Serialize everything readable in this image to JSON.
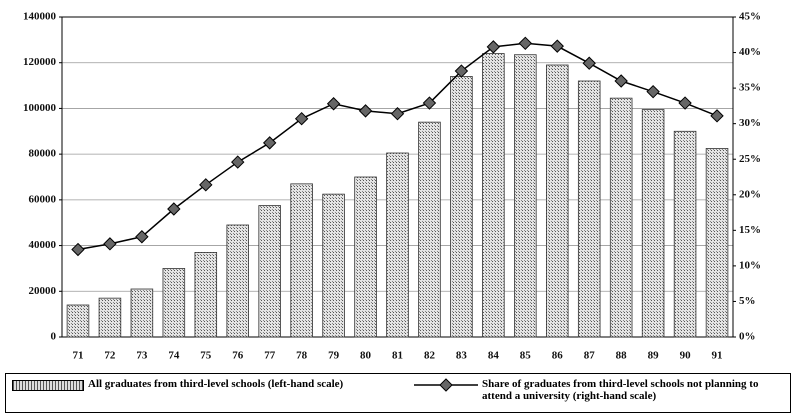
{
  "chart_data": {
    "type": "bar-line",
    "categories": [
      "71",
      "72",
      "73",
      "74",
      "75",
      "76",
      "77",
      "78",
      "79",
      "80",
      "81",
      "82",
      "83",
      "84",
      "85",
      "86",
      "87",
      "88",
      "89",
      "90",
      "91"
    ],
    "series": [
      {
        "name": "All graduates from third-level schools (left-hand scale)",
        "type": "bar",
        "color": "#a8a8a8",
        "axis": "y",
        "values": [
          14000,
          17000,
          21000,
          30000,
          37000,
          49000,
          57500,
          67000,
          62500,
          70000,
          80500,
          94000,
          114000,
          124000,
          123500,
          119000,
          112000,
          104500,
          99500,
          90000,
          82500
        ]
      },
      {
        "name": "Share of graduates from third-level schools not planning to attend a university  (right-hand scale)",
        "type": "line",
        "color": "#000000",
        "axis": "y2",
        "values": [
          12.3,
          13.1,
          14.1,
          18.0,
          21.4,
          24.6,
          27.3,
          30.7,
          32.8,
          31.8,
          31.4,
          32.9,
          37.4,
          40.8,
          41.3,
          40.9,
          38.5,
          36.0,
          34.5,
          32.9,
          31.1
        ]
      }
    ],
    "ylim": [
      0,
      140000
    ],
    "yticks": [
      0,
      20000,
      40000,
      60000,
      80000,
      100000,
      120000,
      140000
    ],
    "y2lim": [
      0,
      45
    ],
    "y2ticks": [
      {
        "value": 0,
        "label": "0%"
      },
      {
        "value": 5,
        "label": "5%"
      },
      {
        "value": 10,
        "label": "10%"
      },
      {
        "value": 15,
        "label": "15%"
      },
      {
        "value": 20,
        "label": "20%"
      },
      {
        "value": 25,
        "label": "25%"
      },
      {
        "value": 30,
        "label": "30%"
      },
      {
        "value": 35,
        "label": "35%"
      },
      {
        "value": 40,
        "label": "40%"
      },
      {
        "value": 45,
        "label": "45%"
      }
    ],
    "grid": true
  }
}
